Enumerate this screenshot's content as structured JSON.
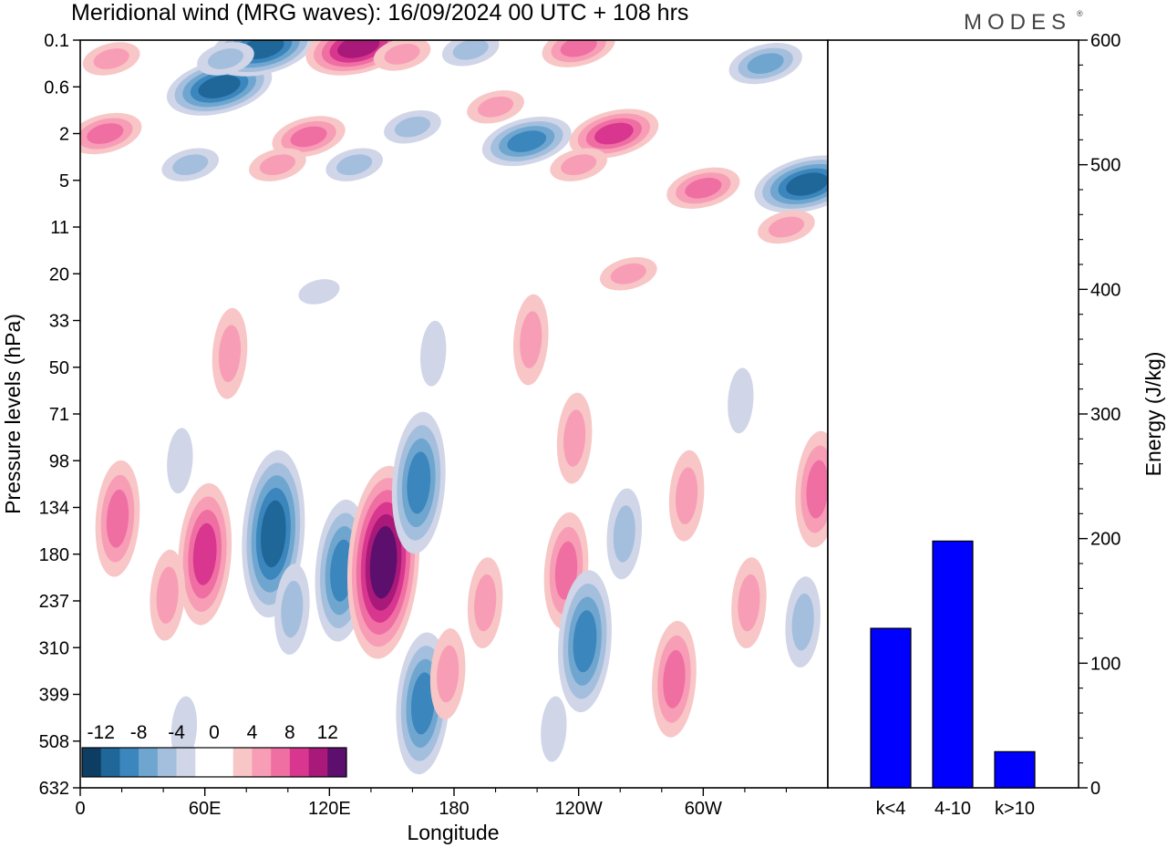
{
  "title": "Meridional wind (MRG waves):  16/09/2024  00 UTC  + 108 hrs",
  "logo": {
    "text": "MODES",
    "mark": "®"
  },
  "colors": {
    "negative": [
      "#0e3d63",
      "#1f6699",
      "#3b86bd",
      "#6fa6cf",
      "#a4bfdd",
      "#d0d5e8"
    ],
    "positive": [
      "#f8c6c6",
      "#f89db6",
      "#ef6fa3",
      "#d8368f",
      "#a81979",
      "#5d0f6d"
    ],
    "bars": "#0000ff"
  },
  "chart_data": [
    {
      "type": "heatmap",
      "name": "meridional-wind-section",
      "xlabel": "Longitude",
      "ylabel": "Pressure levels (hPa)",
      "x_ticks": [
        "0",
        "60E",
        "120E",
        "180",
        "120W",
        "60W"
      ],
      "y_ticks": [
        "0.1",
        "0.6",
        "2",
        "5",
        "11",
        "20",
        "33",
        "50",
        "71",
        "98",
        "134",
        "180",
        "237",
        "310",
        "399",
        "508",
        "632"
      ],
      "colorbar": {
        "labels": [
          "-12",
          "-8",
          "-4",
          "0",
          "4",
          "8",
          "12"
        ]
      },
      "blobs": [
        {
          "lon": 60,
          "lev": 180,
          "v": 8
        },
        {
          "lon": 18,
          "lev": 145,
          "v": 6
        },
        {
          "lon": 42,
          "lev": 230,
          "v": 5
        },
        {
          "lon": 93,
          "lev": 160,
          "v": -10
        },
        {
          "lon": 102,
          "lev": 250,
          "v": -5
        },
        {
          "lon": 126,
          "lev": 200,
          "v": -8
        },
        {
          "lon": 146,
          "lev": 190,
          "v": 12
        },
        {
          "lon": 163,
          "lev": 115,
          "v": -8
        },
        {
          "lon": 165,
          "lev": 420,
          "v": -8
        },
        {
          "lon": 177,
          "lev": 360,
          "v": 5
        },
        {
          "lon": 195,
          "lev": 240,
          "v": 4
        },
        {
          "lon": 234,
          "lev": 200,
          "v": 7
        },
        {
          "lon": 243,
          "lev": 300,
          "v": -8
        },
        {
          "lon": 262,
          "lev": 160,
          "v": -5
        },
        {
          "lon": 286,
          "lev": 370,
          "v": 6
        },
        {
          "lon": 292,
          "lev": 125,
          "v": 5
        },
        {
          "lon": 322,
          "lev": 240,
          "v": 5
        },
        {
          "lon": 348,
          "lev": 270,
          "v": -4
        },
        {
          "lon": 355,
          "lev": 120,
          "v": 6
        },
        {
          "lon": 50,
          "lev": 480,
          "v": -3
        },
        {
          "lon": 228,
          "lev": 480,
          "v": -3
        },
        {
          "lon": 115,
          "lev": 25,
          "v": -3
        },
        {
          "lon": 170,
          "lev": 45,
          "v": -3
        },
        {
          "lon": 72,
          "lev": 45,
          "v": 4
        },
        {
          "lon": 217,
          "lev": 40,
          "v": 4
        },
        {
          "lon": 264,
          "lev": 20,
          "v": 5
        },
        {
          "lon": 238,
          "lev": 85,
          "v": 5
        },
        {
          "lon": 48,
          "lev": 98,
          "v": -3
        },
        {
          "lon": 318,
          "lev": 65,
          "v": -3
        },
        {
          "lon": 67,
          "lev": 0.6,
          "v": -10
        },
        {
          "lon": 88,
          "lev": 0.18,
          "v": -10
        },
        {
          "lon": 70,
          "lev": 0.3,
          "v": -5
        },
        {
          "lon": 134,
          "lev": 0.17,
          "v": 10
        },
        {
          "lon": 155,
          "lev": 0.25,
          "v": 5
        },
        {
          "lon": 188,
          "lev": 0.2,
          "v": -5
        },
        {
          "lon": 240,
          "lev": 0.17,
          "v": 6
        },
        {
          "lon": 330,
          "lev": 0.35,
          "v": -6
        },
        {
          "lon": 15,
          "lev": 0.3,
          "v": 5
        },
        {
          "lon": 12,
          "lev": 2,
          "v": 6
        },
        {
          "lon": 110,
          "lev": 2.2,
          "v": 6
        },
        {
          "lon": 160,
          "lev": 1.8,
          "v": -5
        },
        {
          "lon": 215,
          "lev": 2.5,
          "v": -8
        },
        {
          "lon": 257,
          "lev": 2,
          "v": 9
        },
        {
          "lon": 300,
          "lev": 6,
          "v": 7
        },
        {
          "lon": 350,
          "lev": 5.5,
          "v": -10
        },
        {
          "lon": 240,
          "lev": 4,
          "v": 5
        },
        {
          "lon": 53,
          "lev": 4,
          "v": -5
        },
        {
          "lon": 95,
          "lev": 4,
          "v": 5
        },
        {
          "lon": 132,
          "lev": 4,
          "v": -5
        },
        {
          "lon": 340,
          "lev": 11,
          "v": 4
        },
        {
          "lon": 200,
          "lev": 1.2,
          "v": 4
        }
      ]
    },
    {
      "type": "bar",
      "name": "energy",
      "categories": [
        "k<4",
        "4-10",
        "k>10"
      ],
      "values": [
        128,
        198,
        29
      ],
      "ylabel": "Energy (J/kg)",
      "ylim": [
        0,
        600
      ],
      "y_ticks": [
        0,
        100,
        200,
        300,
        400,
        500,
        600
      ]
    }
  ]
}
